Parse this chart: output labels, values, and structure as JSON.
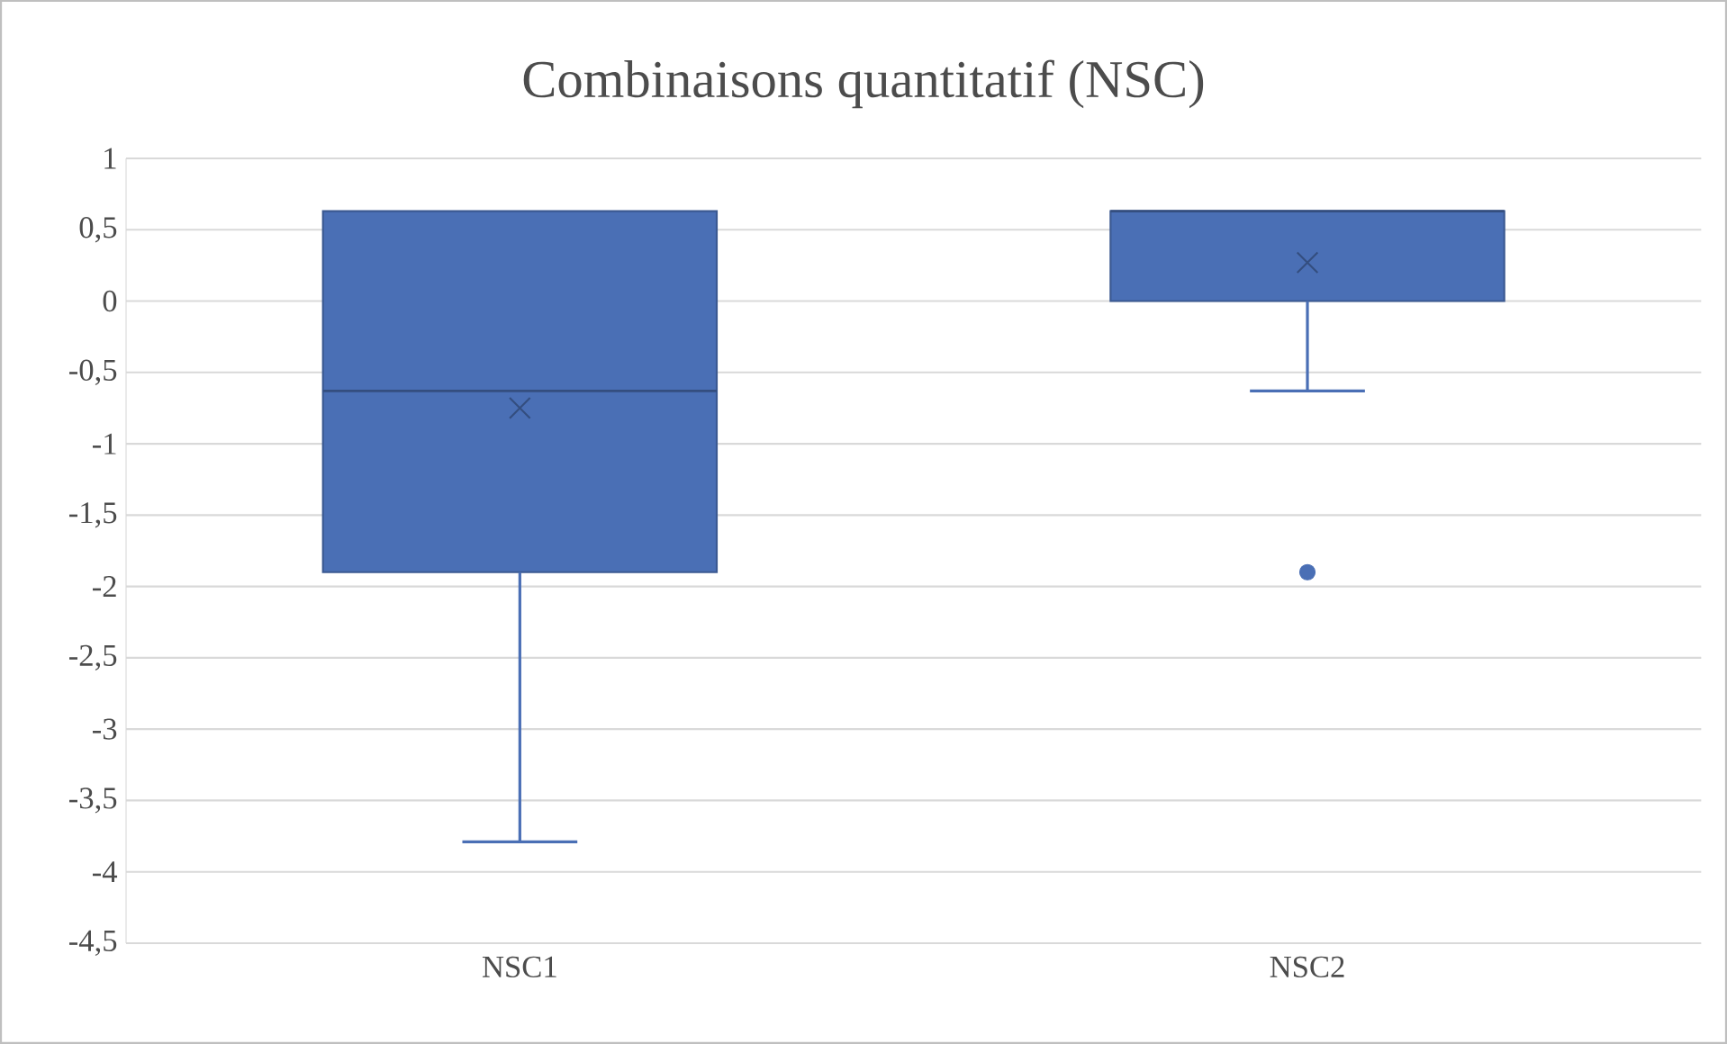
{
  "chart_data": {
    "type": "box",
    "title": "Combinaisons quantitatif (NSC)",
    "categories": [
      "NSC1",
      "NSC2"
    ],
    "color": "#4a6fb5",
    "boxes": [
      {
        "low": -3.79,
        "q1": -1.9,
        "median": -0.63,
        "q3": 0.63,
        "high": 0.63,
        "mean": -0.75
      },
      {
        "low": -0.63,
        "q1": 0,
        "median": 0.63,
        "q3": 0.63,
        "high": 0.63,
        "mean": 0.27,
        "outliers": [
          -1.9
        ]
      }
    ],
    "ylim": [
      -4.5,
      1
    ],
    "yticks": [
      {
        "value": -4.5,
        "label": "-4,5"
      },
      -4,
      {
        "value": -3.5,
        "label": "-3,5"
      },
      -3,
      {
        "value": -2.5,
        "label": "-2,5"
      },
      -2,
      {
        "value": -1.5,
        "label": "-1,5"
      },
      -1,
      {
        "value": -0.5,
        "label": "-0,5"
      },
      0,
      {
        "value": 0.5,
        "label": "0,5"
      },
      1
    ],
    "grid": "y"
  }
}
